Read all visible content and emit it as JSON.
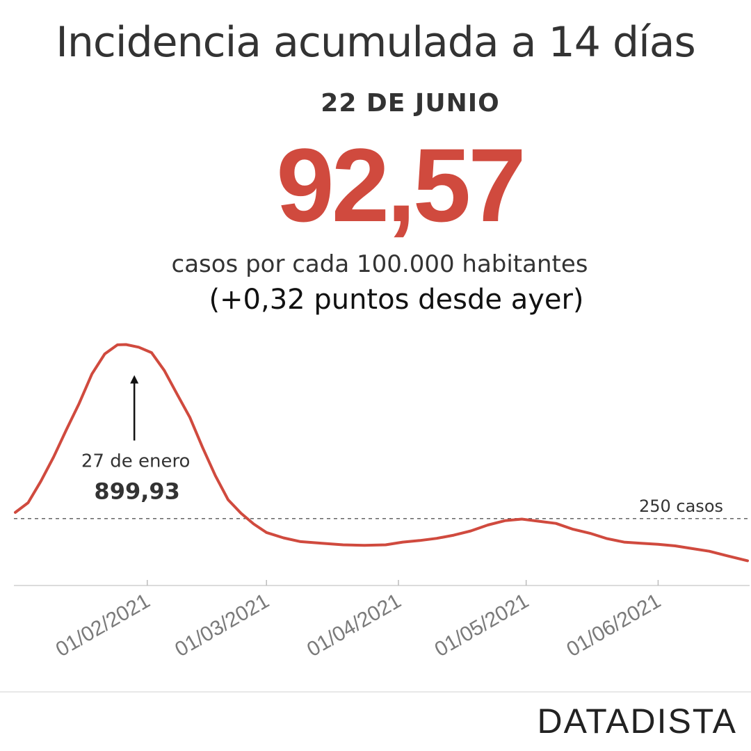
{
  "header": {
    "title": "Incidencia acumulada a 14 días",
    "date": "22 DE JUNIO",
    "value": "92,57",
    "units": "casos por cada 100.000 habitantes",
    "delta": "(+0,32 puntos desde ayer)"
  },
  "brand": "DATADISTA",
  "colors": {
    "accent": "#d04a3e",
    "text": "#333333",
    "reference": "#666666"
  },
  "chart_data": {
    "type": "line",
    "x_label": "",
    "y_label": "",
    "ylim": [
      0,
      1000
    ],
    "x_range": [
      "2021-01-01",
      "2021-06-22"
    ],
    "x_ticks": [
      "01/02/2021",
      "01/03/2021",
      "01/04/2021",
      "01/05/2021",
      "01/06/2021"
    ],
    "grid": false,
    "series": [
      {
        "color": "#d04a3e",
        "points": [
          [
            "2021-01-01",
            273
          ],
          [
            "2021-01-04",
            309
          ],
          [
            "2021-01-07",
            389
          ],
          [
            "2021-01-10",
            480
          ],
          [
            "2021-01-13",
            582
          ],
          [
            "2021-01-16",
            680
          ],
          [
            "2021-01-19",
            790
          ],
          [
            "2021-01-22",
            865
          ],
          [
            "2021-01-25",
            899
          ],
          [
            "2021-01-27",
            899.93
          ],
          [
            "2021-01-30",
            890
          ],
          [
            "2021-02-02",
            870
          ],
          [
            "2021-02-05",
            803
          ],
          [
            "2021-02-08",
            715
          ],
          [
            "2021-02-11",
            628
          ],
          [
            "2021-02-14",
            515
          ],
          [
            "2021-02-17",
            410
          ],
          [
            "2021-02-20",
            320
          ],
          [
            "2021-02-23",
            270
          ],
          [
            "2021-02-26",
            230
          ],
          [
            "2021-03-01",
            198
          ],
          [
            "2021-03-05",
            178
          ],
          [
            "2021-03-09",
            164
          ],
          [
            "2021-03-14",
            158
          ],
          [
            "2021-03-19",
            152
          ],
          [
            "2021-03-24",
            150
          ],
          [
            "2021-03-29",
            152
          ],
          [
            "2021-04-02",
            162
          ],
          [
            "2021-04-06",
            168
          ],
          [
            "2021-04-10",
            176
          ],
          [
            "2021-04-14",
            188
          ],
          [
            "2021-04-18",
            204
          ],
          [
            "2021-04-22",
            226
          ],
          [
            "2021-04-26",
            242
          ],
          [
            "2021-04-30",
            248
          ],
          [
            "2021-05-04",
            240
          ],
          [
            "2021-05-08",
            232
          ],
          [
            "2021-05-12",
            210
          ],
          [
            "2021-05-16",
            195
          ],
          [
            "2021-05-20",
            175
          ],
          [
            "2021-05-24",
            162
          ],
          [
            "2021-05-28",
            158
          ],
          [
            "2021-06-01",
            154
          ],
          [
            "2021-06-05",
            148
          ],
          [
            "2021-06-09",
            138
          ],
          [
            "2021-06-13",
            128
          ],
          [
            "2021-06-17",
            112
          ],
          [
            "2021-06-22",
            92.57
          ]
        ]
      }
    ],
    "reference_line": {
      "value": 250,
      "label": "250 casos"
    },
    "annotation": {
      "date": "2021-01-27",
      "value": 899.93,
      "label": "27 de enero",
      "value_label": "899,93"
    }
  }
}
